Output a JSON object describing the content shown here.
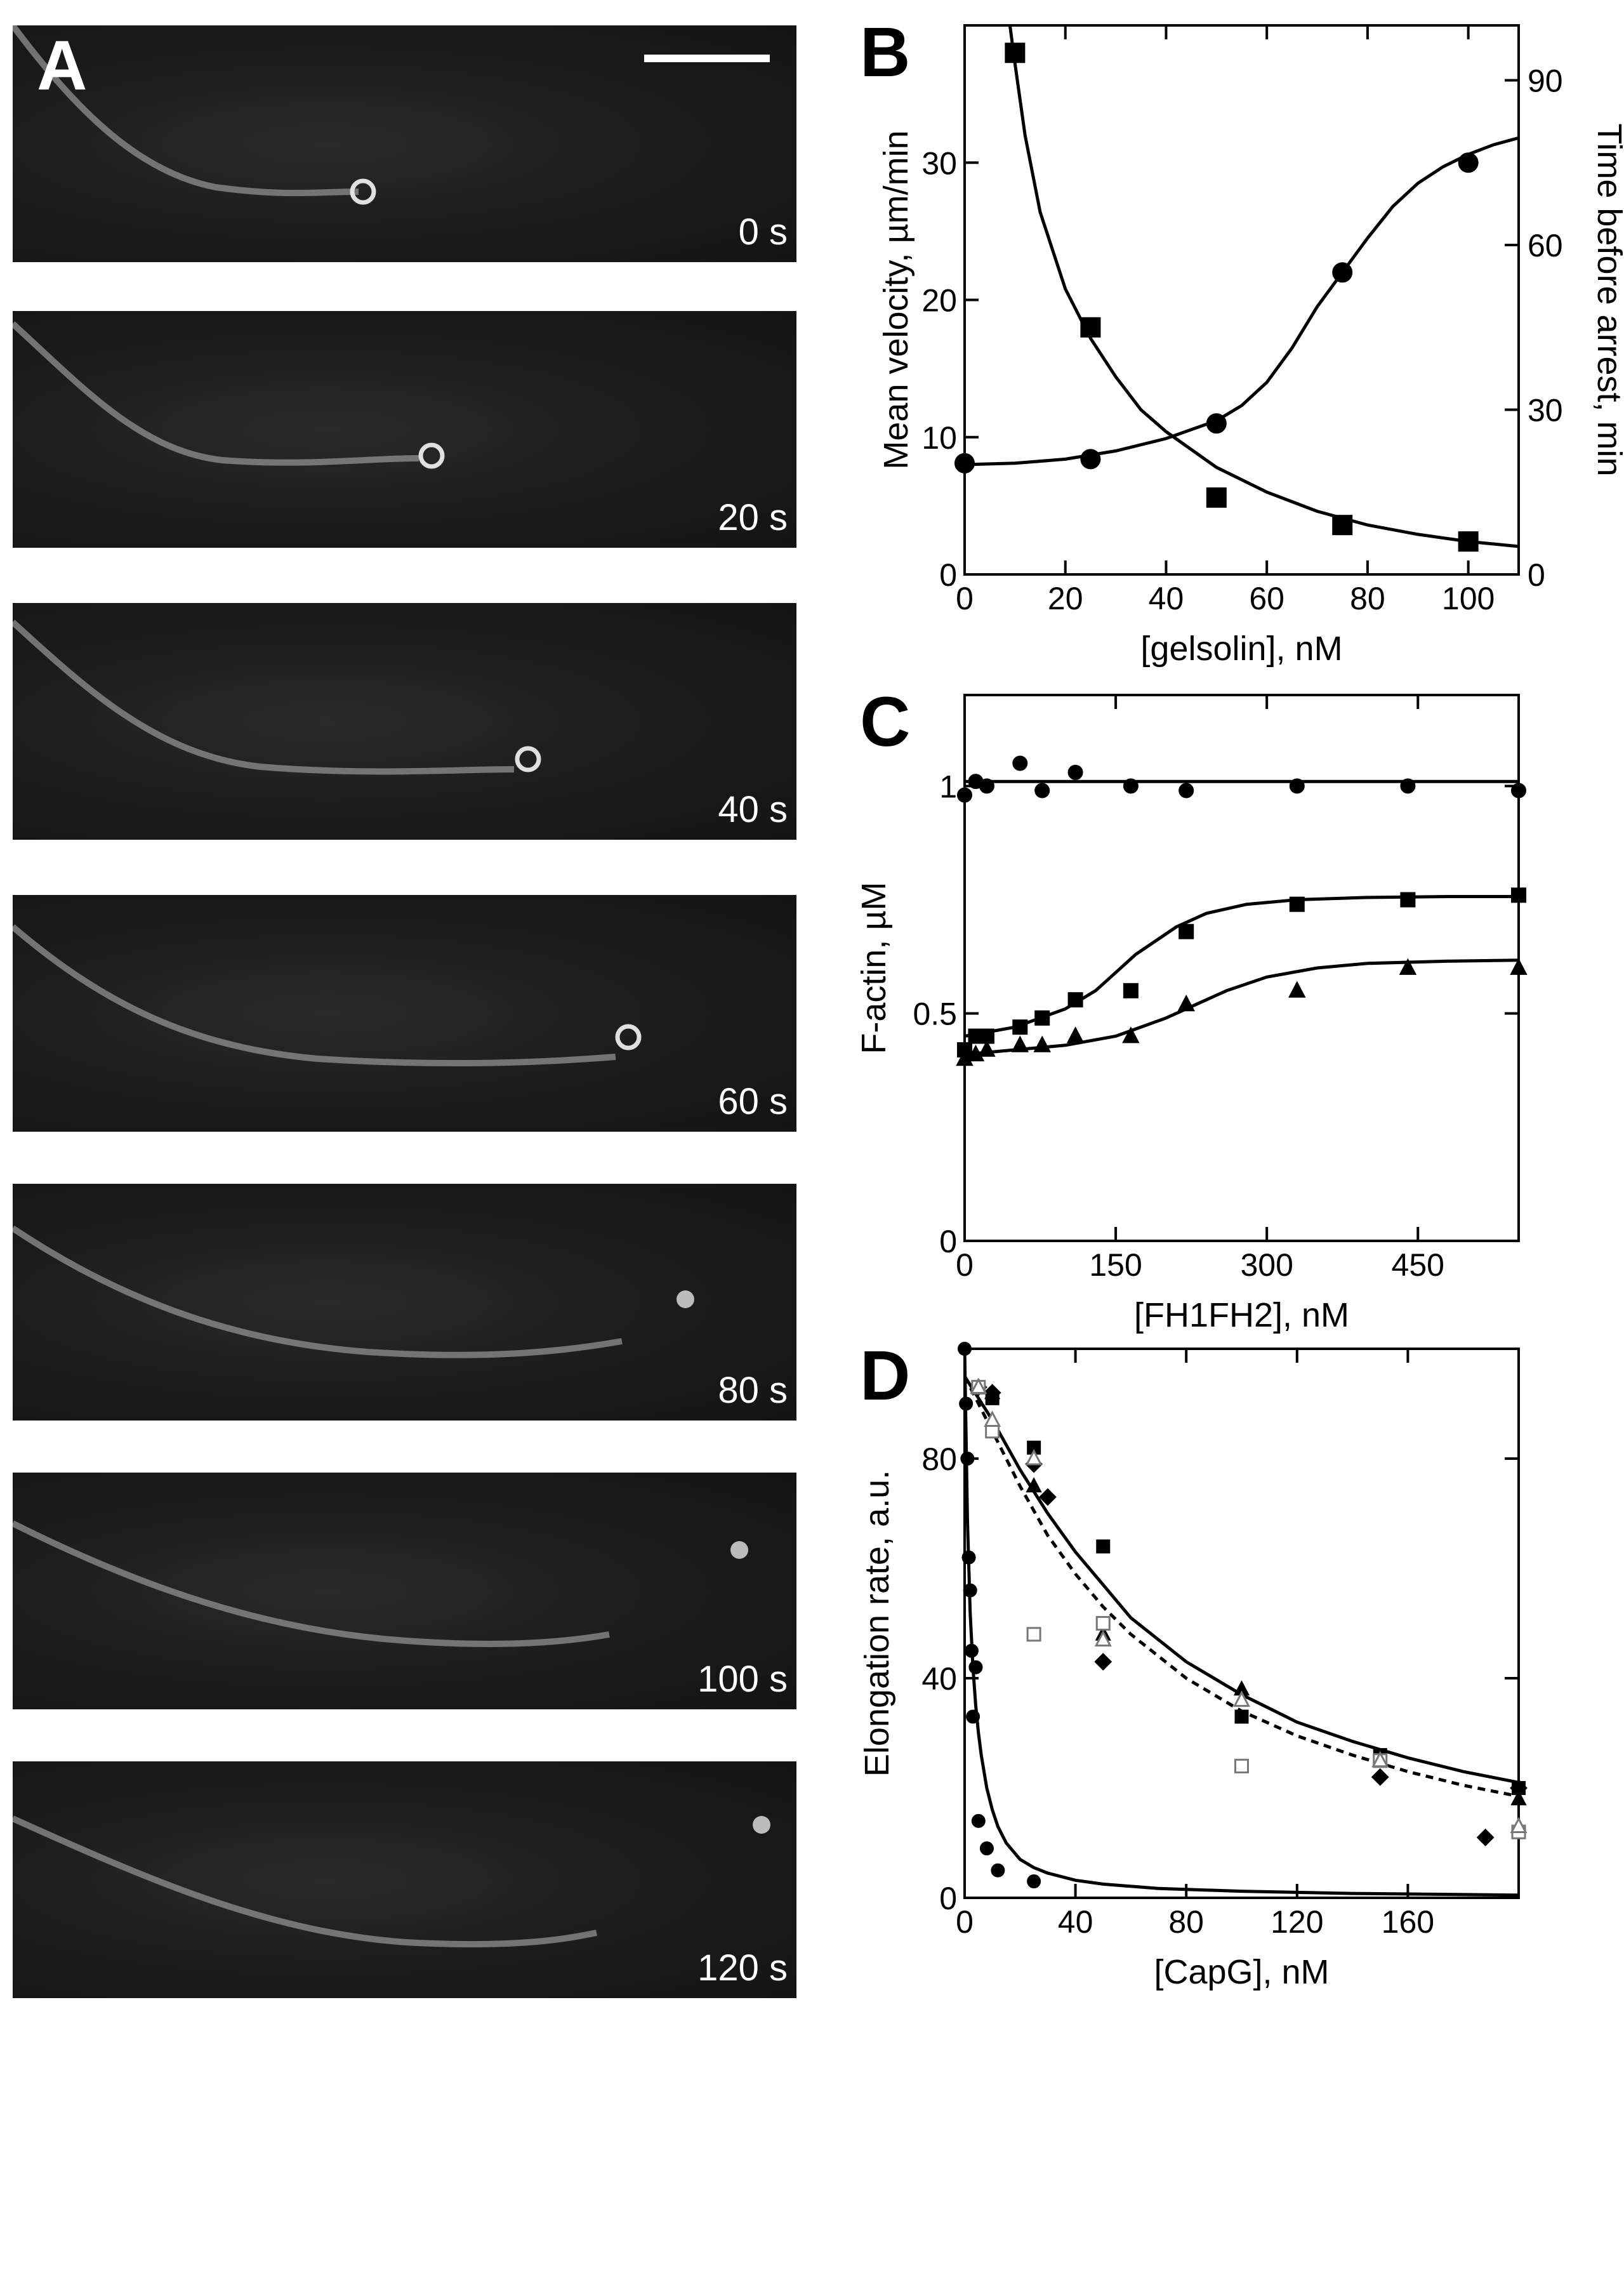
{
  "panel_a": {
    "letter": "A",
    "frames": [
      {
        "time": "0 s"
      },
      {
        "time": "20 s"
      },
      {
        "time": "40 s"
      },
      {
        "time": "60 s"
      },
      {
        "time": "80 s"
      },
      {
        "time": "100 s"
      },
      {
        "time": "120 s"
      }
    ]
  },
  "chart_data": [
    {
      "panel": "B",
      "type": "scatter",
      "xlabel": "[gelsolin], nM",
      "ylabel": "Mean velocity, µm/min",
      "ylabel_right": "Time before arrest, min",
      "xlim": [
        0,
        110
      ],
      "ylim": [
        0,
        40
      ],
      "ylim_right": [
        0,
        100
      ],
      "xticks": [
        0,
        20,
        40,
        60,
        80,
        100
      ],
      "yticks": [
        0,
        10,
        20,
        30
      ],
      "yticks_right": [
        0,
        30,
        60,
        90
      ],
      "series": [
        {
          "axis": "left",
          "marker": "circle",
          "x": [
            0,
            25,
            50,
            75,
            100
          ],
          "y": [
            8.1,
            8.4,
            11,
            22,
            30
          ],
          "fit_x": [
            0,
            10,
            20,
            30,
            40,
            50,
            55,
            60,
            65,
            70,
            75,
            80,
            85,
            90,
            95,
            100,
            105,
            110
          ],
          "fit_y": [
            8.0,
            8.1,
            8.4,
            9.0,
            9.9,
            11.2,
            12.3,
            14.0,
            16.5,
            19.5,
            22.0,
            24.5,
            26.8,
            28.5,
            29.7,
            30.6,
            31.3,
            31.8
          ]
        },
        {
          "axis": "right",
          "marker": "square",
          "x": [
            10,
            25,
            50,
            75,
            100
          ],
          "y": [
            95,
            45,
            14,
            9,
            6
          ],
          "fit_x": [
            9,
            10,
            12,
            15,
            20,
            25,
            30,
            35,
            40,
            50,
            60,
            70,
            80,
            90,
            100,
            110
          ],
          "fit_y": [
            100,
            93,
            80,
            66,
            52,
            43,
            36,
            30,
            26,
            19.5,
            15,
            11.5,
            9,
            7.3,
            6.0,
            5.1
          ]
        }
      ]
    },
    {
      "panel": "C",
      "type": "scatter",
      "xlabel": "[FH1FH2], nM",
      "ylabel": "F-actin, µM",
      "xlim": [
        0,
        550
      ],
      "ylim": [
        0,
        1.2
      ],
      "xticks": [
        0,
        150,
        300,
        450
      ],
      "yticks": [
        0,
        0.5,
        1
      ],
      "ytick_labels": [
        "0",
        "0.5",
        "1"
      ],
      "series": [
        {
          "marker": "circle",
          "x": [
            0,
            11,
            22,
            55,
            77,
            110,
            165,
            220,
            330,
            440,
            550
          ],
          "y": [
            0.98,
            1.01,
            1.0,
            1.05,
            0.99,
            1.03,
            1.0,
            0.99,
            1.0,
            1.0,
            0.99
          ],
          "fit_x": [
            0,
            550
          ],
          "fit_y": [
            1.01,
            1.01
          ]
        },
        {
          "marker": "square",
          "x": [
            0,
            11,
            22,
            55,
            77,
            110,
            165,
            220,
            330,
            440,
            550
          ],
          "y": [
            0.42,
            0.45,
            0.45,
            0.47,
            0.49,
            0.53,
            0.55,
            0.68,
            0.74,
            0.75,
            0.76
          ],
          "fit_x": [
            0,
            50,
            100,
            130,
            150,
            170,
            190,
            210,
            240,
            280,
            330,
            400,
            480,
            550
          ],
          "fit_y": [
            0.45,
            0.47,
            0.51,
            0.55,
            0.59,
            0.63,
            0.66,
            0.69,
            0.72,
            0.74,
            0.75,
            0.755,
            0.757,
            0.757
          ]
        },
        {
          "marker": "triangle",
          "x": [
            0,
            11,
            22,
            55,
            77,
            110,
            165,
            220,
            330,
            440,
            550
          ],
          "y": [
            0.4,
            0.41,
            0.42,
            0.43,
            0.43,
            0.45,
            0.45,
            0.52,
            0.55,
            0.6,
            0.6
          ],
          "fit_x": [
            0,
            50,
            100,
            150,
            200,
            230,
            260,
            300,
            350,
            400,
            480,
            550
          ],
          "fit_y": [
            0.41,
            0.42,
            0.43,
            0.45,
            0.49,
            0.52,
            0.55,
            0.58,
            0.6,
            0.61,
            0.615,
            0.617
          ]
        }
      ]
    },
    {
      "panel": "D",
      "type": "scatter",
      "xlabel": "[CapG], nM",
      "ylabel": "Elongation rate, a.u.",
      "xlim": [
        0,
        200
      ],
      "ylim": [
        0,
        100
      ],
      "xticks": [
        0,
        40,
        80,
        120,
        160
      ],
      "yticks": [
        0,
        40,
        80
      ],
      "series": [
        {
          "marker": "circle",
          "x": [
            0,
            0.5,
            1,
            1.5,
            2,
            2.5,
            3,
            4,
            5,
            8,
            12,
            25
          ],
          "y": [
            100,
            90,
            80,
            62,
            56,
            45,
            33,
            42,
            14,
            9,
            5,
            3
          ]
        },
        {
          "marker": "square",
          "x": [
            5,
            10,
            25,
            50,
            100,
            150,
            200
          ],
          "y": [
            93,
            91,
            82,
            64,
            33,
            26,
            20
          ]
        },
        {
          "marker": "triangle",
          "x": [
            5,
            10,
            25,
            50,
            100,
            150,
            200
          ],
          "y": [
            93,
            92,
            75,
            48,
            38,
            25,
            18
          ]
        },
        {
          "marker": "diamond",
          "x": [
            5,
            10,
            25,
            30,
            50,
            150,
            188,
            200
          ],
          "y": [
            93,
            92,
            79,
            73,
            43,
            22,
            11,
            20
          ]
        },
        {
          "marker": "open-square",
          "x": [
            5,
            10,
            25,
            50,
            100,
            150,
            200
          ],
          "y": [
            93,
            85,
            48,
            50,
            24,
            25,
            12
          ]
        },
        {
          "marker": "open-triangle",
          "x": [
            5,
            10,
            25,
            50,
            100,
            150,
            200
          ],
          "y": [
            93,
            87,
            80,
            47,
            36,
            25,
            13
          ]
        }
      ],
      "fits": [
        {
          "style": "solid",
          "x": [
            0,
            1,
            2,
            3,
            4,
            5,
            6,
            8,
            10,
            12,
            15,
            20,
            25,
            30,
            40,
            50,
            70,
            100,
            140,
            200
          ],
          "y": [
            100,
            69,
            52,
            42,
            35,
            30,
            26,
            20,
            16,
            13,
            10,
            7,
            5.5,
            4.5,
            3.2,
            2.5,
            1.7,
            1.2,
            0.8,
            0.5
          ]
        },
        {
          "style": "solid",
          "x": [
            0,
            10,
            20,
            30,
            40,
            50,
            60,
            80,
            100,
            120,
            140,
            160,
            180,
            200
          ],
          "y": [
            95,
            87,
            78,
            70,
            63,
            57,
            51,
            43,
            37,
            32,
            28.5,
            25.5,
            23,
            21
          ]
        },
        {
          "style": "dashed",
          "x": [
            0,
            10,
            20,
            30,
            40,
            50,
            60,
            80,
            100,
            120,
            140,
            160,
            180,
            200
          ],
          "y": [
            95,
            85,
            75,
            66,
            59,
            53,
            48,
            40,
            34,
            29.5,
            26,
            23,
            20.5,
            18.5
          ]
        }
      ]
    }
  ]
}
